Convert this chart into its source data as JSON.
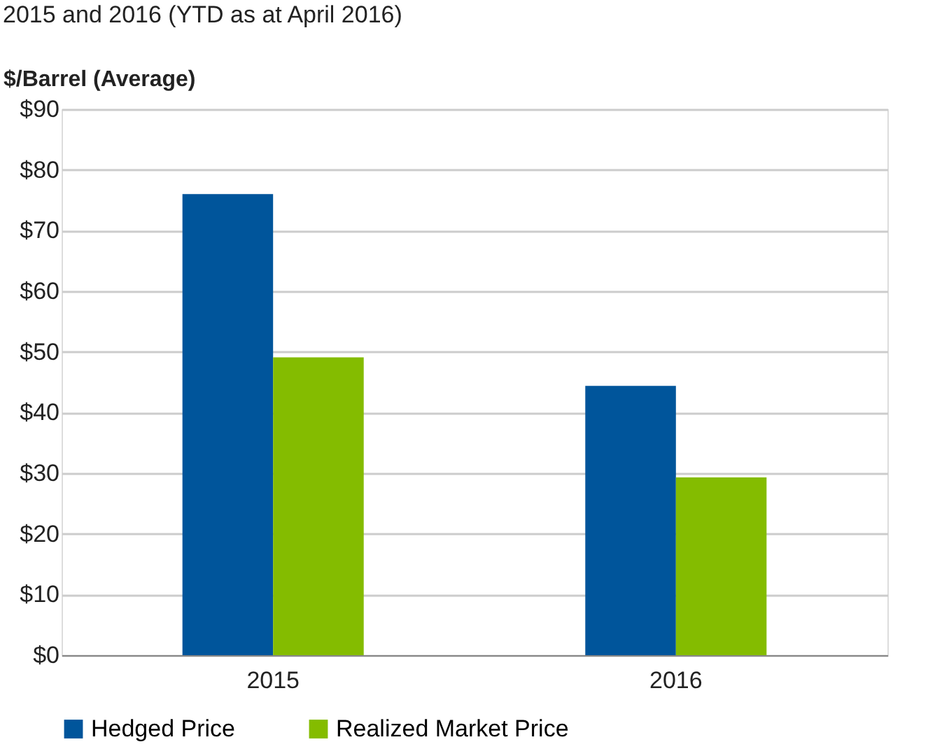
{
  "chart_data": {
    "type": "bar",
    "title": "2015 and 2016 (YTD as at April 2016)",
    "ylabel": "$/Barrel (Average)",
    "categories": [
      "2015",
      "2016"
    ],
    "series": [
      {
        "name": "Hedged Price",
        "color": "#00559b",
        "values": [
          76.0,
          44.4
        ]
      },
      {
        "name": "Realized Market Price",
        "color": "#84bc00",
        "values": [
          49.1,
          29.3
        ]
      }
    ],
    "ylim": [
      0,
      90
    ],
    "yticks": [
      {
        "value": 0,
        "label": "$0"
      },
      {
        "value": 10,
        "label": "$10"
      },
      {
        "value": 20,
        "label": "$20"
      },
      {
        "value": 30,
        "label": "$30"
      },
      {
        "value": 40,
        "label": "$40"
      },
      {
        "value": 50,
        "label": "$50"
      },
      {
        "value": 60,
        "label": "$60"
      },
      {
        "value": 70,
        "label": "$70"
      },
      {
        "value": 80,
        "label": "$80"
      },
      {
        "value": 90,
        "label": "$90"
      }
    ],
    "grid": "y",
    "legend": "bottom"
  }
}
